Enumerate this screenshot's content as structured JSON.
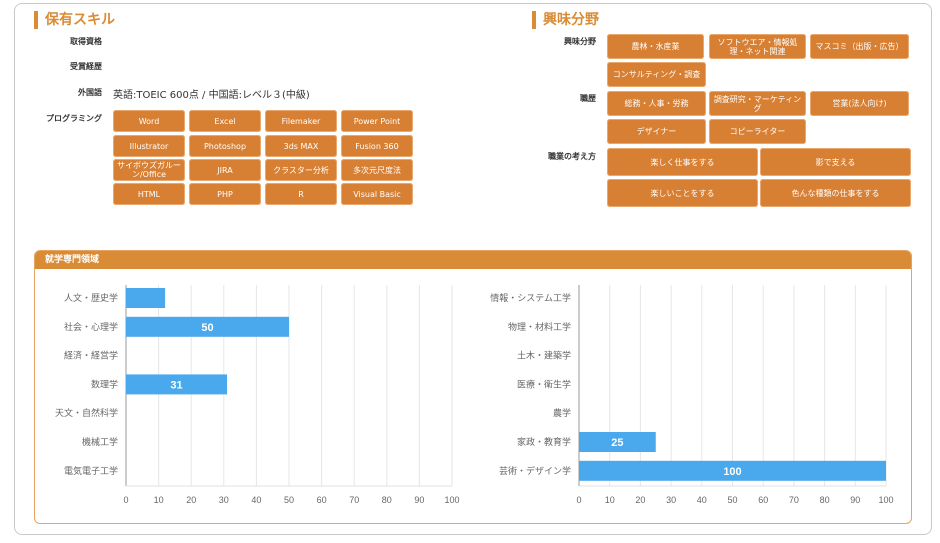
{
  "skills": {
    "title": "保有スキル",
    "qualifications_label": "取得資格",
    "awards_label": "受賞経歴",
    "languages_label": "外国語",
    "languages_value": "英語:TOEIC 600点 / 中国語:レベル３(中級)",
    "programming_label": "プログラミング",
    "programming": [
      "Word",
      "Excel",
      "Filemaker",
      "Power Point",
      "Illustrator",
      "Photoshop",
      "3ds MAX",
      "Fusion 360",
      "サイボウズガルーン/Office",
      "JIRA",
      "クラスター分析",
      "多次元尺度法",
      "HTML",
      "PHP",
      "R",
      "Visual Basic"
    ]
  },
  "interests": {
    "title": "興味分野",
    "fields_label": "興味分野",
    "fields": [
      "農林・水産業",
      "ソフトウエア・情報処理・ネット関連",
      "マスコミ（出版・広告）",
      "コンサルティング・調査"
    ],
    "career_label": "職歴",
    "career": [
      "総務・人事・労務",
      "調査研究・マーケティング",
      "営業(法人向け)",
      "デザイナー",
      "コピーライター"
    ],
    "thinking_label": "職業の考え方",
    "thinking": [
      "楽しく仕事をする",
      "影で支える",
      "楽しいことをする",
      "色んな種類の仕事をする"
    ]
  },
  "panel": {
    "title": "就学専門領域"
  },
  "colors": {
    "accent": "#d98b35",
    "button": "#d77f33",
    "bar": "#4aa8ec"
  },
  "chart_data": [
    {
      "type": "bar",
      "orientation": "horizontal",
      "categories": [
        "人文・歴史学",
        "社会・心理学",
        "経済・経営学",
        "数理学",
        "天文・自然科学",
        "機械工学",
        "電気電子工学"
      ],
      "values": [
        12,
        50,
        0,
        31,
        0,
        0,
        0
      ],
      "data_labels": [
        "",
        "50",
        "",
        "31",
        "",
        "",
        ""
      ],
      "xlim": [
        0,
        100
      ],
      "ticks": [
        "0",
        "10",
        "20",
        "30",
        "40",
        "50",
        "60",
        "70",
        "80",
        "90",
        "100"
      ],
      "grid": true
    },
    {
      "type": "bar",
      "orientation": "horizontal",
      "categories": [
        "情報・システム工学",
        "物理・材料工学",
        "土木・建築学",
        "医療・衛生学",
        "農学",
        "家政・教育学",
        "芸術・デザイン学"
      ],
      "values": [
        0,
        0,
        0,
        0,
        0,
        25,
        100
      ],
      "data_labels": [
        "",
        "",
        "",
        "",
        "",
        "25",
        "100"
      ],
      "xlim": [
        0,
        100
      ],
      "ticks": [
        "0",
        "10",
        "20",
        "30",
        "40",
        "50",
        "60",
        "70",
        "80",
        "90",
        "100"
      ],
      "grid": true
    }
  ]
}
